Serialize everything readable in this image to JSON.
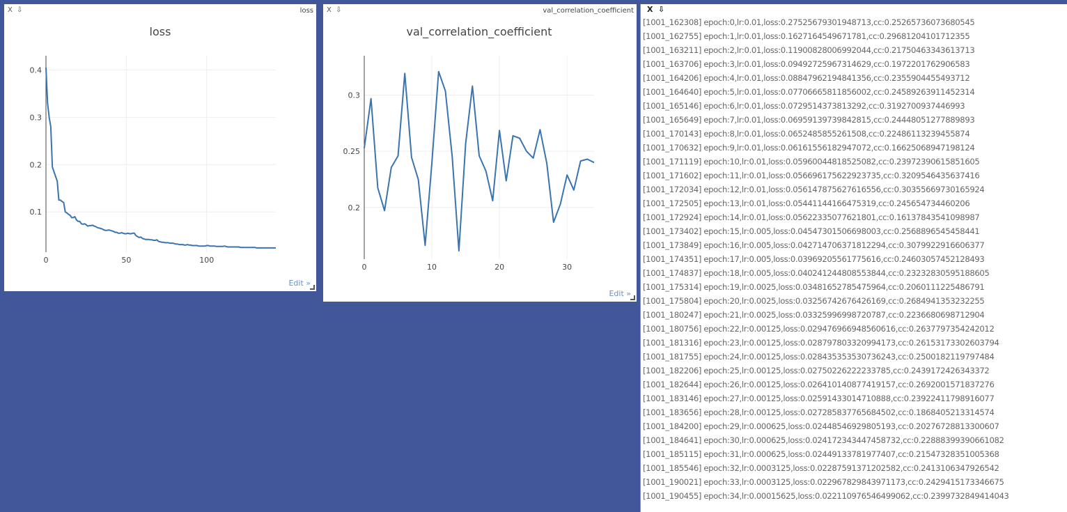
{
  "pane_controls": {
    "close": "X",
    "download": "⇩"
  },
  "loss_pane": {
    "title": "loss",
    "edit_label": "Edit »"
  },
  "cc_pane": {
    "title": "val_correlation_coefficient",
    "edit_label": "Edit »"
  },
  "colors": {
    "background": "#41579a",
    "line": "#3a74b0",
    "grid": "#eeeeee"
  },
  "chart_data": [
    {
      "type": "line",
      "title": "loss",
      "xlabel": "",
      "ylabel": "",
      "xlim": [
        0,
        143
      ],
      "ylim": [
        0.015,
        0.43
      ],
      "xticks": [
        0,
        50,
        100
      ],
      "yticks": [
        0.1,
        0.2,
        0.3,
        0.4
      ],
      "ytick_labels": [
        "0.1",
        "0.2",
        "0.3",
        "0.4"
      ],
      "grid": true,
      "series": [
        {
          "x": [
            0,
            1,
            2,
            3,
            4,
            5,
            6,
            7,
            8,
            9,
            10,
            11,
            12,
            13,
            14,
            15,
            16,
            17,
            18,
            19,
            20,
            21,
            22,
            23,
            24,
            25,
            26,
            27,
            28,
            29,
            30,
            31,
            32,
            33,
            34,
            35,
            36,
            37,
            38,
            39,
            40,
            41,
            42,
            43,
            44,
            45,
            46,
            47,
            48,
            49,
            50,
            51,
            52,
            53,
            54,
            55,
            56,
            57,
            58,
            59,
            60,
            61,
            62,
            63,
            64,
            65,
            66,
            67,
            68,
            69,
            70,
            71,
            72,
            73,
            74,
            75,
            76,
            77,
            78,
            79,
            80,
            81,
            82,
            83,
            84,
            85,
            86,
            87,
            88,
            89,
            90,
            91,
            92,
            93,
            94,
            95,
            96,
            97,
            98,
            99,
            100,
            101,
            102,
            103,
            104,
            105,
            106,
            107,
            108,
            109,
            110,
            111,
            112,
            113,
            114,
            115,
            116,
            117,
            118,
            119,
            120,
            121,
            122,
            123,
            124,
            125,
            126,
            127,
            128,
            129,
            130,
            131,
            132,
            133,
            134,
            135,
            136,
            137,
            138,
            139,
            140,
            141,
            142,
            143
          ],
          "y": [
            0.405,
            0.33,
            0.3,
            0.28,
            0.195,
            0.185,
            0.175,
            0.165,
            0.125,
            0.125,
            0.122,
            0.12,
            0.1,
            0.098,
            0.095,
            0.093,
            0.088,
            0.088,
            0.09,
            0.083,
            0.08,
            0.08,
            0.075,
            0.074,
            0.075,
            0.073,
            0.07,
            0.071,
            0.071,
            0.072,
            0.07,
            0.069,
            0.067,
            0.066,
            0.065,
            0.064,
            0.062,
            0.061,
            0.061,
            0.062,
            0.061,
            0.06,
            0.059,
            0.057,
            0.057,
            0.055,
            0.055,
            0.056,
            0.055,
            0.054,
            0.054,
            0.055,
            0.054,
            0.054,
            0.055,
            0.055,
            0.05,
            0.048,
            0.046,
            0.047,
            0.044,
            0.043,
            0.042,
            0.042,
            0.042,
            0.041,
            0.041,
            0.04,
            0.04,
            0.041,
            0.038,
            0.037,
            0.036,
            0.036,
            0.035,
            0.035,
            0.035,
            0.034,
            0.034,
            0.034,
            0.033,
            0.032,
            0.032,
            0.031,
            0.031,
            0.031,
            0.03,
            0.03,
            0.031,
            0.03,
            0.03,
            0.029,
            0.029,
            0.029,
            0.029,
            0.028,
            0.028,
            0.028,
            0.028,
            0.028,
            0.029,
            0.029,
            0.028,
            0.028,
            0.028,
            0.028,
            0.027,
            0.027,
            0.027,
            0.027,
            0.027,
            0.028,
            0.027,
            0.026,
            0.026,
            0.026,
            0.026,
            0.026,
            0.026,
            0.026,
            0.026,
            0.025,
            0.025,
            0.025,
            0.025,
            0.025,
            0.025,
            0.025,
            0.025,
            0.025,
            0.025,
            0.024,
            0.024,
            0.024,
            0.024,
            0.024,
            0.024,
            0.024,
            0.024,
            0.024,
            0.024,
            0.024,
            0.024,
            0.024
          ]
        }
      ]
    },
    {
      "type": "line",
      "title": "val_correlation_coefficient",
      "xlabel": "",
      "ylabel": "",
      "xlim": [
        0,
        34
      ],
      "ylim": [
        0.154,
        0.335
      ],
      "xticks": [
        0,
        10,
        20,
        30
      ],
      "yticks": [
        0.2,
        0.25,
        0.3
      ],
      "ytick_labels": [
        "0.2",
        "0.25",
        "0.3"
      ],
      "grid": true,
      "series": [
        {
          "x": [
            0,
            1,
            2,
            3,
            4,
            5,
            6,
            7,
            8,
            9,
            10,
            11,
            12,
            13,
            14,
            15,
            16,
            17,
            18,
            19,
            20,
            21,
            22,
            23,
            24,
            25,
            26,
            27,
            28,
            29,
            30,
            31,
            32,
            33,
            34
          ],
          "y": [
            0.2526573607,
            0.296812041,
            0.2175046334,
            0.1972201763,
            0.2355904455,
            0.2458926391,
            0.3192700937,
            0.2444805128,
            0.2248611324,
            0.1662506895,
            0.2397239062,
            0.3209546436,
            0.3035566973,
            0.2456547345,
            0.1613784354,
            0.2568896545,
            0.3079922917,
            0.2460305745,
            0.232328306,
            0.2060111225,
            0.2684941353,
            0.2236680699,
            0.2637797354,
            0.261531733,
            0.250018212,
            0.2439172426,
            0.2692001572,
            0.239224118,
            0.1868405213,
            0.2027672881,
            0.2288839939,
            0.2154732835,
            0.2413106348,
            0.2429415173,
            0.2399732849
          ]
        }
      ]
    }
  ],
  "log": {
    "lines": [
      "[1001_162308] epoch:0,lr:0.01,loss:0.27525679301948713,cc:0.25265736073680545",
      "[1001_162755] epoch:1,lr:0.01,loss:0.1627164549671781,cc:0.29681204101712355",
      "[1001_163211] epoch:2,lr:0.01,loss:0.11900828006992044,cc:0.21750463343613713",
      "[1001_163706] epoch:3,lr:0.01,loss:0.09492725967314629,cc:0.1972201762906583",
      "[1001_164206] epoch:4,lr:0.01,loss:0.08847962194841356,cc:0.2355904455493712",
      "[1001_164640] epoch:5,lr:0.01,loss:0.07706665811856002,cc:0.24589263911452314",
      "[1001_165146] epoch:6,lr:0.01,loss:0.0729514373813292,cc:0.3192700937446993",
      "[1001_165649] epoch:7,lr:0.01,loss:0.06959139739842815,cc:0.24448051277889893",
      "[1001_170143] epoch:8,lr:0.01,loss:0.0652485855261508,cc:0.22486113239455874",
      "[1001_170632] epoch:9,lr:0.01,loss:0.06161556182947072,cc:0.16625068947198124",
      "[1001_171119] epoch:10,lr:0.01,loss:0.05960044818525082,cc:0.23972390615851605",
      "[1001_171602] epoch:11,lr:0.01,loss:0.056696175622923735,cc:0.3209546435637416",
      "[1001_172034] epoch:12,lr:0.01,loss:0.056147875627616556,cc:0.30355669730165924",
      "[1001_172505] epoch:13,lr:0.01,loss:0.05441144166475319,cc:0.245654734460206",
      "[1001_172924] epoch:14,lr:0.01,loss:0.05622335077621801,cc:0.16137843541098987",
      "[1001_173402] epoch:15,lr:0.005,loss:0.04547301506698003,cc:0.2568896545458441",
      "[1001_173849] epoch:16,lr:0.005,loss:0.042714706371812294,cc:0.3079922916606377",
      "[1001_174351] epoch:17,lr:0.005,loss:0.03969205561775616,cc:0.24603057452128493",
      "[1001_174837] epoch:18,lr:0.005,loss:0.040241244808553844,cc:0.23232830595188605",
      "[1001_175314] epoch:19,lr:0.0025,loss:0.03481652785475964,cc:0.2060111225486791",
      "[1001_175804] epoch:20,lr:0.0025,loss:0.03256742676426169,cc:0.2684941353232255",
      "[1001_180247] epoch:21,lr:0.0025,loss:0.03325996998720787,cc:0.2236680698712904",
      "[1001_180756] epoch:22,lr:0.00125,loss:0.029476966948560616,cc:0.2637797354242012",
      "[1001_181316] epoch:23,lr:0.00125,loss:0.028797803320994173,cc:0.26153173302603794",
      "[1001_181755] epoch:24,lr:0.00125,loss:0.028435353530736243,cc:0.2500182119797484",
      "[1001_182206] epoch:25,lr:0.00125,loss:0.02750226222233785,cc:0.2439172426343372",
      "[1001_182644] epoch:26,lr:0.00125,loss:0.026410140877419157,cc:0.2692001571837276",
      "[1001_183146] epoch:27,lr:0.00125,loss:0.02591433014710888,cc:0.23922411798916077",
      "[1001_183656] epoch:28,lr:0.00125,loss:0.027285837765684502,cc:0.1868405213314574",
      "[1001_184200] epoch:29,lr:0.000625,loss:0.02448546929805193,cc:0.20276728813300607",
      "[1001_184641] epoch:30,lr:0.000625,loss:0.024172343447458732,cc:0.22888399390661082",
      "[1001_185115] epoch:31,lr:0.000625,loss:0.02449133781977407,cc:0.21547328351005368",
      "[1001_185546] epoch:32,lr:0.0003125,loss:0.02287591371202582,cc:0.2413106347926542",
      "[1001_190021] epoch:33,lr:0.0003125,loss:0.022967829843971173,cc:0.2429415173346675",
      "[1001_190455] epoch:34,lr:0.00015625,loss:0.022110976546499062,cc:0.2399732849414043"
    ]
  }
}
